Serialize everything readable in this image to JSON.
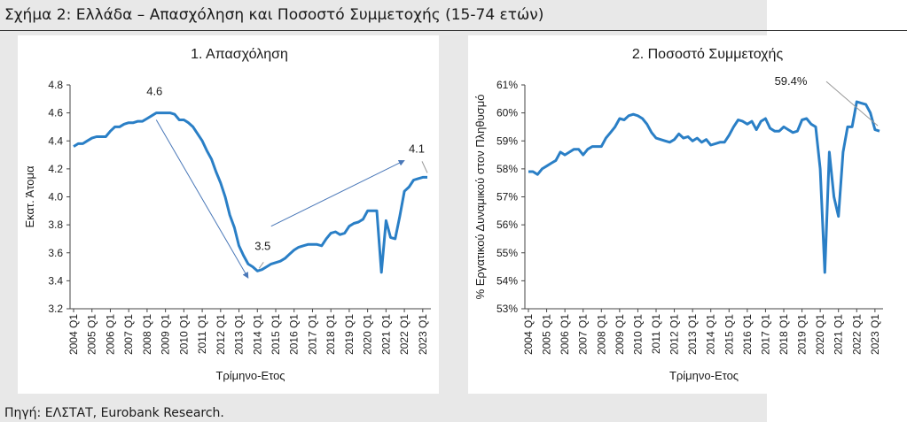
{
  "figure": {
    "title": "Σχήμα 2: Ελλάδα – Απασχόληση και Ποσοστό Συμμετοχής (15-74 ετών)",
    "source": "Πηγή: ΕΛΣΤΑΤ, Eurobank Research."
  },
  "colors": {
    "line": "#2a7fc6",
    "arrow": "#4a78b8",
    "background": "#e8e8e8"
  },
  "chart_data": [
    {
      "type": "line",
      "title": "1. Απασχόληση",
      "xlabel": "Τρίμηνο-Ετος",
      "ylabel": "Εκατ. Άτομα",
      "ylim": [
        3.2,
        4.8
      ],
      "yticks": [
        3.2,
        3.4,
        3.6,
        3.8,
        4.0,
        4.2,
        4.4,
        4.6,
        4.8
      ],
      "ytick_labels": [
        "3.2",
        "3.4",
        "3.6",
        "3.8",
        "4.0",
        "4.2",
        "4.4",
        "4.6",
        "4.8"
      ],
      "xtick_labels": [
        "2004 Q1",
        "2005 Q1",
        "2006 Q1",
        "2007 Q1",
        "2008 Q1",
        "2009 Q1",
        "2010 Q1",
        "2011 Q1",
        "2012 Q1",
        "2013 Q1",
        "2014 Q1",
        "2015 Q1",
        "2016 Q1",
        "2017 Q1",
        "2018 Q1",
        "2019 Q1",
        "2020 Q1",
        "2021 Q1",
        "2022 Q1",
        "2023 Q1"
      ],
      "quarters": 78,
      "series": [
        {
          "values": [
            4.36,
            4.38,
            4.38,
            4.4,
            4.42,
            4.43,
            4.43,
            4.43,
            4.47,
            4.5,
            4.5,
            4.52,
            4.53,
            4.53,
            4.54,
            4.54,
            4.56,
            4.58,
            4.6,
            4.6,
            4.6,
            4.6,
            4.59,
            4.55,
            4.55,
            4.53,
            4.5,
            4.45,
            4.4,
            4.33,
            4.27,
            4.18,
            4.1,
            4.0,
            3.87,
            3.78,
            3.65,
            3.58,
            3.52,
            3.5,
            3.47,
            3.48,
            3.5,
            3.52,
            3.53,
            3.54,
            3.56,
            3.59,
            3.62,
            3.64,
            3.65,
            3.66,
            3.66,
            3.66,
            3.65,
            3.7,
            3.74,
            3.75,
            3.73,
            3.74,
            3.79,
            3.81,
            3.82,
            3.84,
            3.9,
            3.9,
            3.9,
            3.46,
            3.83,
            3.71,
            3.7,
            3.86,
            4.04,
            4.07,
            4.12,
            4.13,
            4.14,
            4.14
          ]
        }
      ],
      "annotations": [
        {
          "text": "4.6",
          "x_index": 18,
          "y": 4.6
        },
        {
          "text": "3.5",
          "x_index": 40,
          "y": 3.47
        },
        {
          "text": "4.1",
          "x_index": 77,
          "y": 4.14
        }
      ]
    },
    {
      "type": "line",
      "title": "2. Ποσοστό Συμμετοχής",
      "xlabel": "Τρίμηνο-Ετος",
      "ylabel": "% Εργατικού Δυναμικού στον Πληθυσμό",
      "ylim": [
        53,
        61
      ],
      "yticks": [
        53,
        54,
        55,
        56,
        57,
        58,
        59,
        60,
        61
      ],
      "ytick_labels": [
        "53%",
        "54%",
        "55%",
        "56%",
        "57%",
        "58%",
        "59%",
        "60%",
        "61%"
      ],
      "xtick_labels": [
        "2004 Q1",
        "2005 Q1",
        "2006 Q1",
        "2007 Q1",
        "2008 Q1",
        "2009 Q1",
        "2010 Q1",
        "2011 Q1",
        "2012 Q1",
        "2013 Q1",
        "2014 Q1",
        "2015 Q1",
        "2016 Q1",
        "2017 Q1",
        "2018 Q1",
        "2019 Q1",
        "2020 Q1",
        "2021 Q1",
        "2022 Q1",
        "2023 Q1"
      ],
      "quarters": 78,
      "series": [
        {
          "values": [
            57.9,
            57.9,
            57.8,
            58.0,
            58.1,
            58.2,
            58.3,
            58.6,
            58.5,
            58.6,
            58.7,
            58.7,
            58.5,
            58.7,
            58.8,
            58.8,
            58.8,
            59.1,
            59.3,
            59.5,
            59.8,
            59.75,
            59.9,
            59.95,
            59.9,
            59.8,
            59.6,
            59.3,
            59.1,
            59.05,
            59.0,
            58.95,
            59.05,
            59.25,
            59.1,
            59.15,
            59.0,
            59.1,
            58.95,
            59.05,
            58.85,
            58.9,
            58.95,
            58.95,
            59.2,
            59.5,
            59.75,
            59.7,
            59.6,
            59.7,
            59.4,
            59.7,
            59.8,
            59.45,
            59.35,
            59.35,
            59.5,
            59.4,
            59.3,
            59.35,
            59.75,
            59.8,
            59.6,
            59.5,
            58.0,
            54.3,
            58.6,
            57.0,
            56.3,
            58.6,
            59.5,
            59.5,
            60.4,
            60.35,
            60.3,
            60.0,
            59.4,
            59.35
          ]
        }
      ],
      "annotations": [
        {
          "text": "59.4%",
          "x_index": 77,
          "y": 59.35
        }
      ]
    }
  ]
}
